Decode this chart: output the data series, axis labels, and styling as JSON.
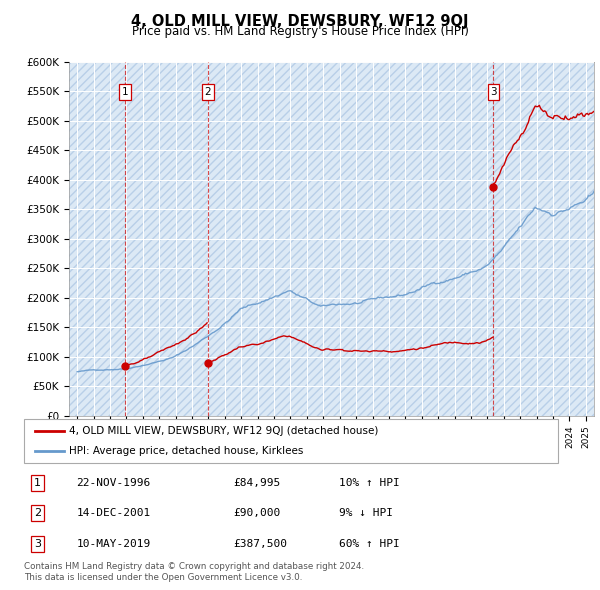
{
  "title": "4, OLD MILL VIEW, DEWSBURY, WF12 9QJ",
  "subtitle": "Price paid vs. HM Land Registry's House Price Index (HPI)",
  "ylim": [
    0,
    600000
  ],
  "yticks": [
    0,
    50000,
    100000,
    150000,
    200000,
    250000,
    300000,
    350000,
    400000,
    450000,
    500000,
    550000,
    600000
  ],
  "ytick_labels": [
    "£0",
    "£50K",
    "£100K",
    "£150K",
    "£200K",
    "£250K",
    "£300K",
    "£350K",
    "£400K",
    "£450K",
    "£500K",
    "£550K",
    "£600K"
  ],
  "xlim_start": 1993.5,
  "xlim_end": 2025.5,
  "background_color": "#ffffff",
  "plot_bg_color": "#dce9f5",
  "hatch_color": "#b8cfe8",
  "grid_color": "#ffffff",
  "line1_color": "#cc0000",
  "line2_color": "#6699cc",
  "sale_marker_color": "#cc0000",
  "dashed_line_color": "#cc0000",
  "transactions": [
    {
      "num": "1",
      "date_x": 1996.9,
      "price": 84995
    },
    {
      "num": "2",
      "date_x": 2001.95,
      "price": 90000
    },
    {
      "num": "3",
      "date_x": 2019.37,
      "price": 387500
    }
  ],
  "table_rows": [
    {
      "num": "1",
      "date": "22-NOV-1996",
      "price": "£84,995",
      "change": "10% ↑ HPI"
    },
    {
      "num": "2",
      "date": "14-DEC-2001",
      "price": "£90,000",
      "change": "9% ↓ HPI"
    },
    {
      "num": "3",
      "date": "10-MAY-2019",
      "price": "£387,500",
      "change": "60% ↑ HPI"
    }
  ],
  "legend_label1": "4, OLD MILL VIEW, DEWSBURY, WF12 9QJ (detached house)",
  "legend_label2": "HPI: Average price, detached house, Kirklees",
  "footnote": "Contains HM Land Registry data © Crown copyright and database right 2024.\nThis data is licensed under the Open Government Licence v3.0."
}
